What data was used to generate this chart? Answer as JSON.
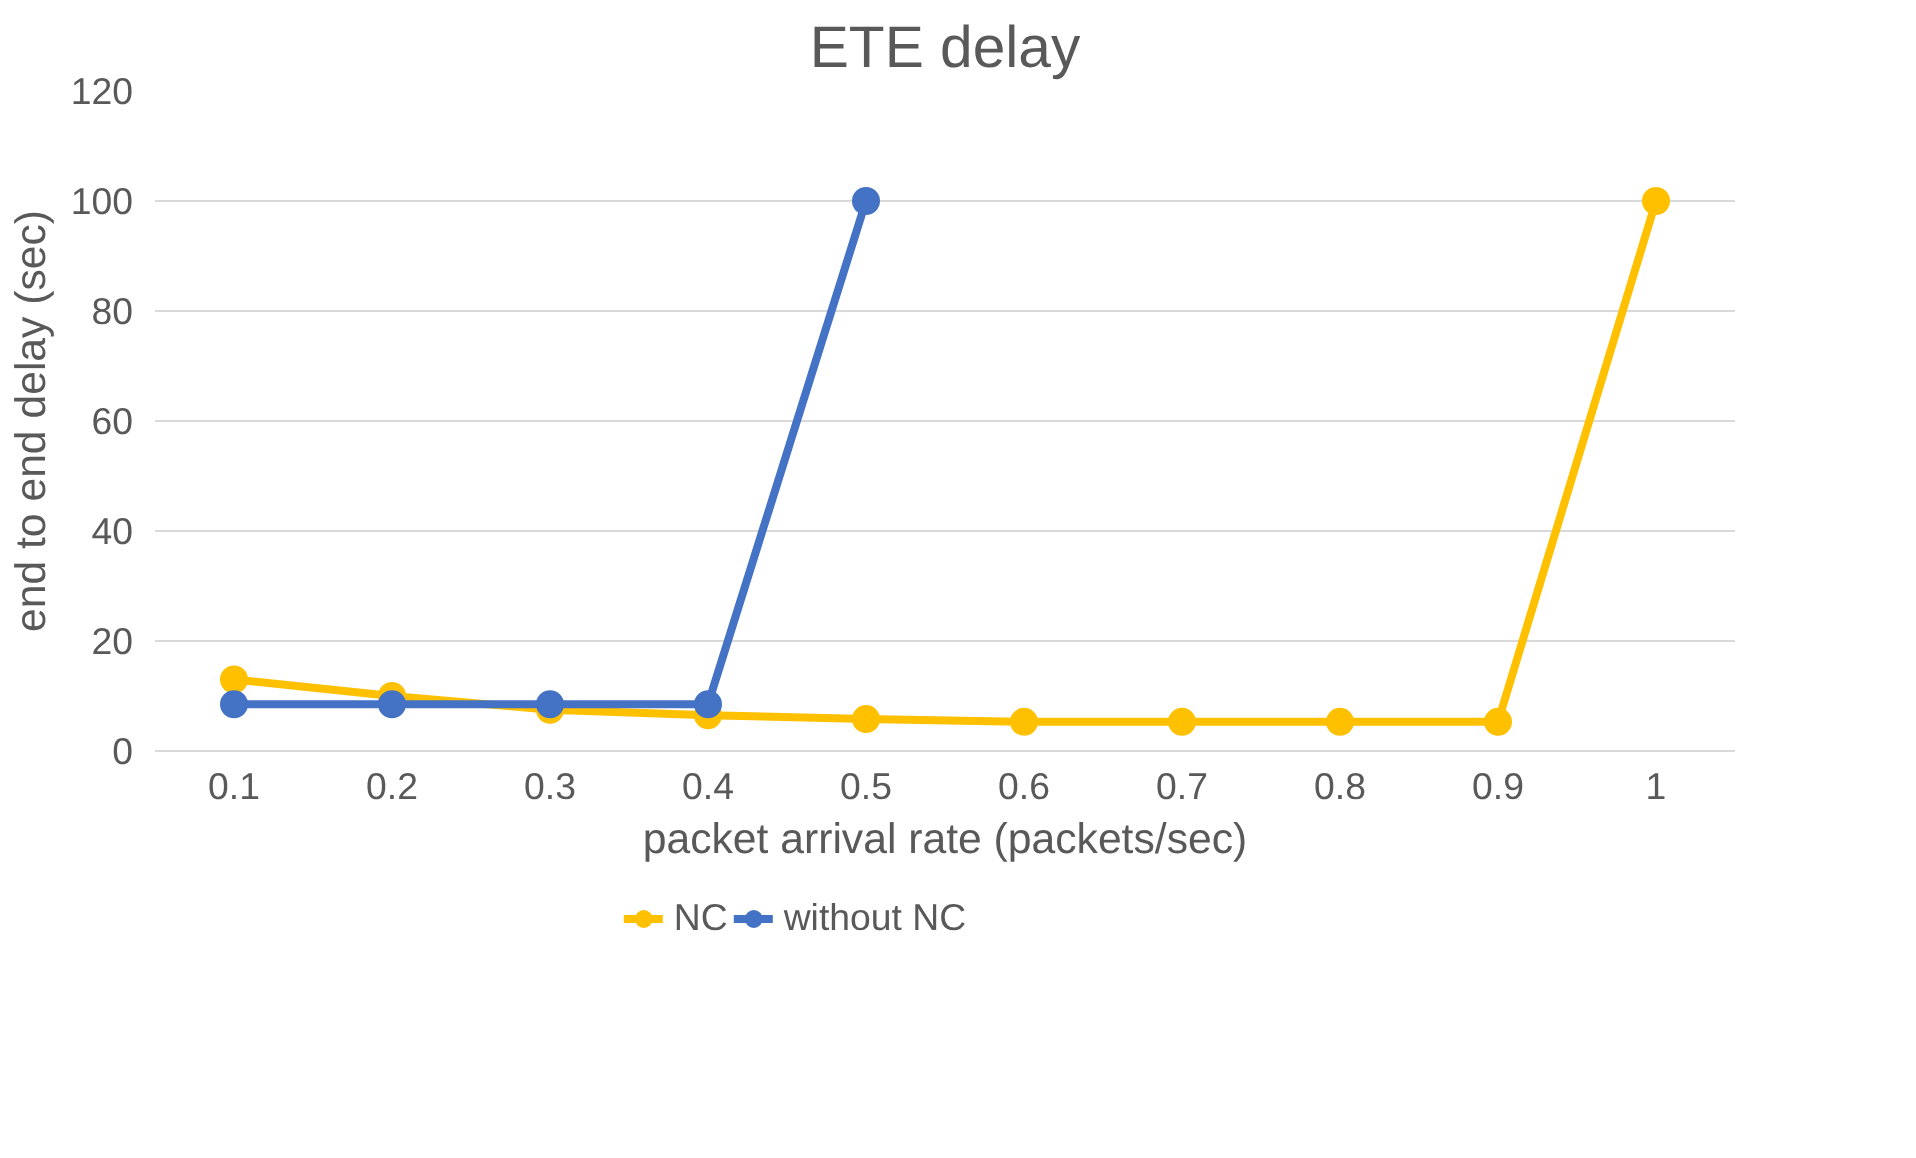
{
  "chart_data": {
    "type": "line",
    "title": "ETE delay",
    "xlabel": "packet arrival rate (packets/sec)",
    "ylabel": "end to end delay (sec)",
    "categories": [
      "0.1",
      "0.2",
      "0.3",
      "0.4",
      "0.5",
      "0.6",
      "0.7",
      "0.8",
      "0.9",
      "1"
    ],
    "series": [
      {
        "name": "NC",
        "color": "#ffc000",
        "values": [
          13,
          10,
          7.5,
          6.5,
          5.8,
          5.3,
          5.3,
          5.3,
          5.3,
          100
        ]
      },
      {
        "name": "without NC",
        "color": "#4472c4",
        "values": [
          8.5,
          8.5,
          8.5,
          8.5,
          100,
          null,
          null,
          null,
          null,
          null
        ]
      }
    ],
    "ylim": [
      0,
      120
    ],
    "yticks": [
      0,
      20,
      40,
      60,
      80,
      100,
      120
    ],
    "grid": "y",
    "legend": "bottom",
    "marker": "circle",
    "line_style": "solid"
  }
}
